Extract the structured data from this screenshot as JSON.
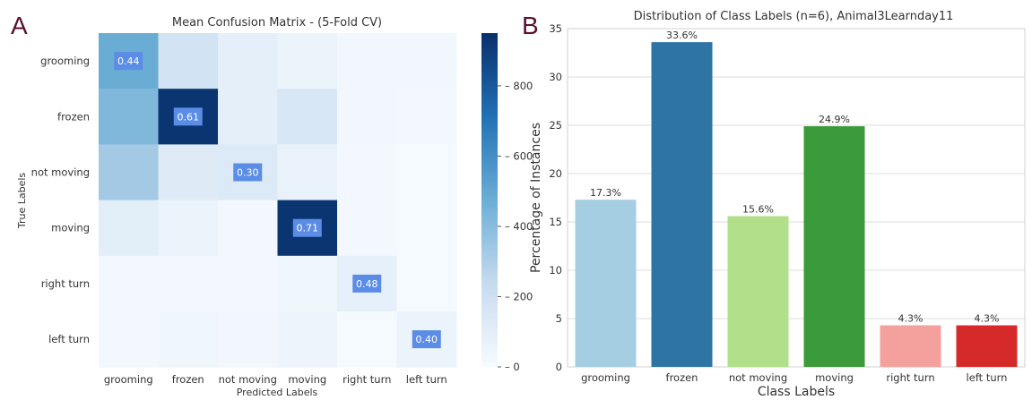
{
  "panels": {
    "a": "A",
    "b": "B"
  },
  "chart_data": [
    {
      "type": "heatmap",
      "title": "Mean Confusion Matrix - (5-Fold CV)",
      "xlabel": "Predicted Labels",
      "ylabel": "True Labels",
      "x_categories": [
        "grooming",
        "frozen",
        "not moving",
        "moving",
        "right turn",
        "left turn"
      ],
      "y_categories": [
        "grooming",
        "frozen",
        "not moving",
        "moving",
        "right turn",
        "left turn"
      ],
      "counts": [
        [
          480,
          180,
          90,
          60,
          30,
          30
        ],
        [
          420,
          930,
          90,
          150,
          30,
          20
        ],
        [
          330,
          120,
          130,
          70,
          20,
          10
        ],
        [
          100,
          60,
          20,
          930,
          20,
          10
        ],
        [
          20,
          20,
          20,
          40,
          80,
          10
        ],
        [
          20,
          40,
          30,
          50,
          10,
          60
        ]
      ],
      "diagonal_labels": [
        "0.44",
        "0.61",
        "0.30",
        "0.71",
        "0.48",
        "0.40"
      ],
      "colorbar": {
        "min": 0,
        "max": 950,
        "ticks": [
          0,
          200,
          400,
          600,
          800
        ]
      },
      "colors": {
        "low": "#f7fbff",
        "high": "#08306b",
        "label_box": "#5b8de6"
      }
    },
    {
      "type": "bar",
      "title": "Distribution of Class Labels (n=6), Animal3Learnday11",
      "xlabel": "Class Labels",
      "ylabel": "Percentage of Instances",
      "categories": [
        "grooming",
        "frozen",
        "not moving",
        "moving",
        "right turn",
        "left turn"
      ],
      "values": [
        17.3,
        33.6,
        15.6,
        24.9,
        4.3,
        4.3
      ],
      "value_labels": [
        "17.3%",
        "33.6%",
        "15.6%",
        "24.9%",
        "4.3%",
        "4.3%"
      ],
      "colors": [
        "#a6cee3",
        "#2e74a5",
        "#b2df8a",
        "#3b9a3a",
        "#f4a09c",
        "#d62a2a"
      ],
      "ylim": [
        0,
        35
      ],
      "yticks": [
        0,
        5,
        10,
        15,
        20,
        25,
        30,
        35
      ],
      "grid": true
    }
  ]
}
